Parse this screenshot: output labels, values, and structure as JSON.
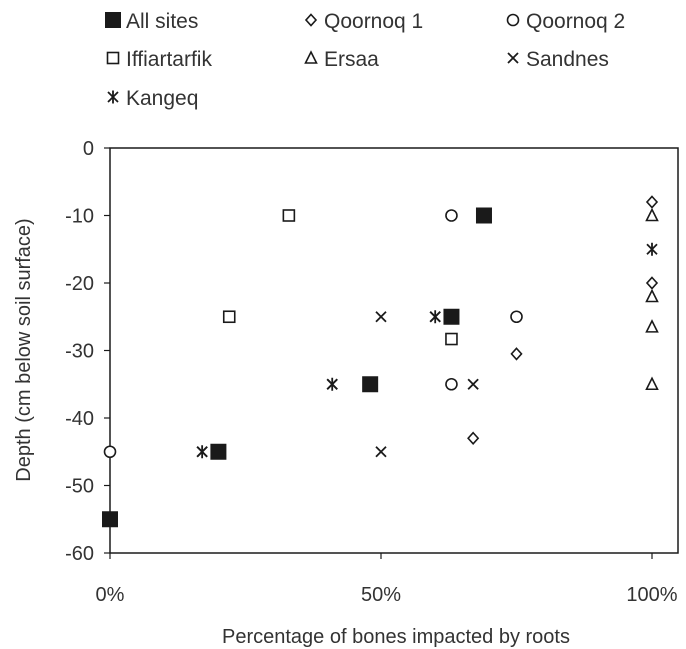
{
  "chart_data": {
    "type": "scatter",
    "title": "",
    "xlabel": "Percentage of bones impacted by roots",
    "ylabel": "Depth (cm below soil surface)",
    "xlim": [
      0,
      1
    ],
    "ylim": [
      -60,
      0
    ],
    "x_ticks": [
      "0%",
      "50%",
      "100%"
    ],
    "y_ticks": [
      "0",
      "-10",
      "-20",
      "-30",
      "-40",
      "-50",
      "-60"
    ],
    "legend_placement": "top",
    "grid": false,
    "series": [
      {
        "name": "All sites",
        "marker": "filled-square",
        "points": [
          [
            0.0,
            -55
          ],
          [
            0.2,
            -45
          ],
          [
            0.48,
            -35
          ],
          [
            0.63,
            -25
          ],
          [
            0.69,
            -10
          ]
        ]
      },
      {
        "name": "Qoornoq 1",
        "marker": "diamond",
        "points": [
          [
            0.67,
            -43
          ],
          [
            0.75,
            -30.5
          ],
          [
            1.0,
            -8
          ],
          [
            1.0,
            -20
          ]
        ]
      },
      {
        "name": "Qoornoq 2",
        "marker": "circle",
        "points": [
          [
            0.0,
            -45
          ],
          [
            0.63,
            -35
          ],
          [
            0.63,
            -10
          ],
          [
            0.75,
            -25
          ]
        ]
      },
      {
        "name": "Iffiartarfik",
        "marker": "square",
        "points": [
          [
            0.33,
            -10
          ],
          [
            0.22,
            -25
          ],
          [
            0.63,
            -28.3
          ]
        ]
      },
      {
        "name": "Ersaa",
        "marker": "triangle",
        "points": [
          [
            1.0,
            -10
          ],
          [
            1.0,
            -22
          ],
          [
            1.0,
            -26.5
          ],
          [
            1.0,
            -35
          ]
        ]
      },
      {
        "name": "Sandnes",
        "marker": "x",
        "points": [
          [
            0.17,
            -45
          ],
          [
            0.41,
            -35
          ],
          [
            0.5,
            -45
          ],
          [
            0.5,
            -25
          ],
          [
            0.6,
            -25
          ],
          [
            0.67,
            -35
          ]
        ]
      },
      {
        "name": "Kangeq",
        "marker": "asterisk",
        "points": [
          [
            0.17,
            -45
          ],
          [
            0.41,
            -35
          ],
          [
            0.6,
            -25
          ],
          [
            1.0,
            -15
          ]
        ]
      }
    ],
    "colors": {
      "marker": "#1a1a1a",
      "axis": "#1a1a1a",
      "text": "#333333"
    }
  }
}
